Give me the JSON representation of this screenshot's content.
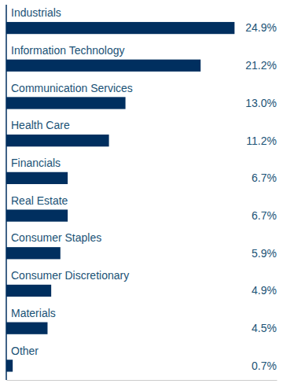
{
  "chart_data": {
    "type": "bar",
    "orientation": "horizontal",
    "categories": [
      "Industrials",
      "Information Technology",
      "Communication Services",
      "Health Care",
      "Financials",
      "Real Estate",
      "Consumer Staples",
      "Consumer Discretionary",
      "Materials",
      "Other"
    ],
    "values": [
      24.9,
      21.2,
      13.0,
      11.2,
      6.7,
      6.7,
      5.9,
      4.9,
      4.5,
      0.7
    ],
    "value_labels": [
      "24.9%",
      "21.2%",
      "13.0%",
      "11.2%",
      "6.7%",
      "6.7%",
      "5.9%",
      "4.9%",
      "4.5%",
      "0.7%"
    ],
    "data_labels": true,
    "color": "#002f5f",
    "xlim": [
      0,
      29.5
    ],
    "tick_labels": false,
    "grid": false
  }
}
